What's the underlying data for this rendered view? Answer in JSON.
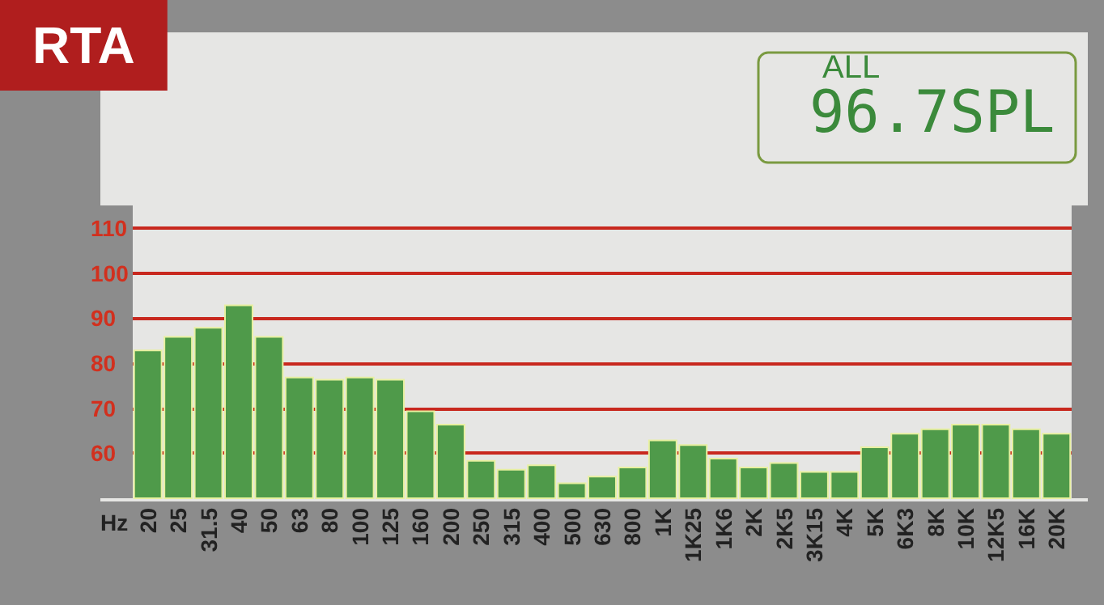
{
  "chart_data": {
    "type": "bar",
    "title": "RTA",
    "xlabel": "Hz",
    "annotations": [
      "ALL",
      "96.7SPL"
    ],
    "categories": [
      "20",
      "25",
      "31.5",
      "40",
      "50",
      "63",
      "80",
      "100",
      "125",
      "160",
      "200",
      "250",
      "315",
      "400",
      "500",
      "630",
      "800",
      "1K",
      "1K25",
      "1K6",
      "2K",
      "2K5",
      "3K15",
      "4K",
      "5K",
      "6K3",
      "8K",
      "10K",
      "12K5",
      "16K",
      "20K"
    ],
    "values": [
      83,
      86,
      88,
      93,
      86,
      77,
      76.5,
      77,
      76.5,
      69.5,
      66.5,
      58.5,
      56.5,
      57.5,
      53.5,
      55,
      57,
      63,
      62,
      59,
      57,
      58,
      56,
      56,
      61.5,
      64.5,
      65.5,
      66.5,
      66.5,
      65.5,
      64.5
    ],
    "color": "#4f9a4a",
    "ylim": [
      50,
      115
    ],
    "yticks": [
      60,
      70,
      80,
      90,
      100,
      110
    ],
    "grid": "y"
  }
}
